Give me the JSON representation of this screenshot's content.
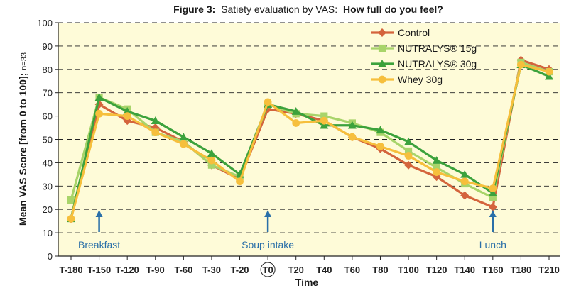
{
  "chart_data": {
    "type": "line",
    "title": {
      "prefix": "Figure 3:",
      "middle": "Satiety evaluation by VAS:",
      "emphasis": "How full do you feel?"
    },
    "xlabel": "Time",
    "ylabel": "Mean VAS Score [from 0 to 100]; ",
    "ylabel_suffix": "n=33",
    "ylim": [
      0,
      100
    ],
    "yticks": [
      0,
      10,
      20,
      30,
      40,
      50,
      60,
      70,
      80,
      90,
      100
    ],
    "grid": "horizontal dashed",
    "legend_position": "top-right",
    "categories": [
      "T-180",
      "T-150",
      "T-120",
      "T-90",
      "T-60",
      "T-30",
      "T-20",
      "T0",
      "T20",
      "T40",
      "T60",
      "T80",
      "T100",
      "T120",
      "T140",
      "T160",
      "T180",
      "T210"
    ],
    "series": [
      {
        "name": "Control",
        "color": "#d4643c",
        "marker": "diamond",
        "values": [
          16,
          65,
          58,
          55,
          49,
          39,
          33,
          63,
          61,
          58,
          51,
          46,
          39,
          34,
          26,
          21,
          84,
          80
        ]
      },
      {
        "name": "NUTRALYS® 15g",
        "color": "#a8d46a",
        "marker": "square",
        "values": [
          24,
          68,
          63,
          53,
          49,
          39,
          34,
          65,
          61,
          60,
          57,
          53,
          45,
          38,
          31,
          25,
          83,
          79
        ]
      },
      {
        "name": "NUTRALYS® 30g",
        "color": "#3ca23c",
        "marker": "triangle",
        "values": [
          16,
          68,
          62,
          58,
          51,
          44,
          35,
          65,
          62,
          56,
          56,
          54,
          49,
          41,
          35,
          27,
          82,
          77
        ]
      },
      {
        "name": "Whey 30g",
        "color": "#f6bf3c",
        "marker": "circle",
        "values": [
          16,
          61,
          60,
          53,
          48,
          41,
          32,
          66,
          57,
          58,
          51,
          47,
          43,
          36,
          32,
          29,
          82,
          79
        ]
      }
    ],
    "annotations": [
      {
        "text": "Breakfast",
        "at": "T-150"
      },
      {
        "text": "Soup intake",
        "at": "T0"
      },
      {
        "text": "Lunch",
        "at": "T160"
      }
    ],
    "circled_tick": "T0"
  },
  "colors": {
    "plot_background": "#fefbd8",
    "grid": "#222222",
    "arrow": "#2a6fa8"
  }
}
